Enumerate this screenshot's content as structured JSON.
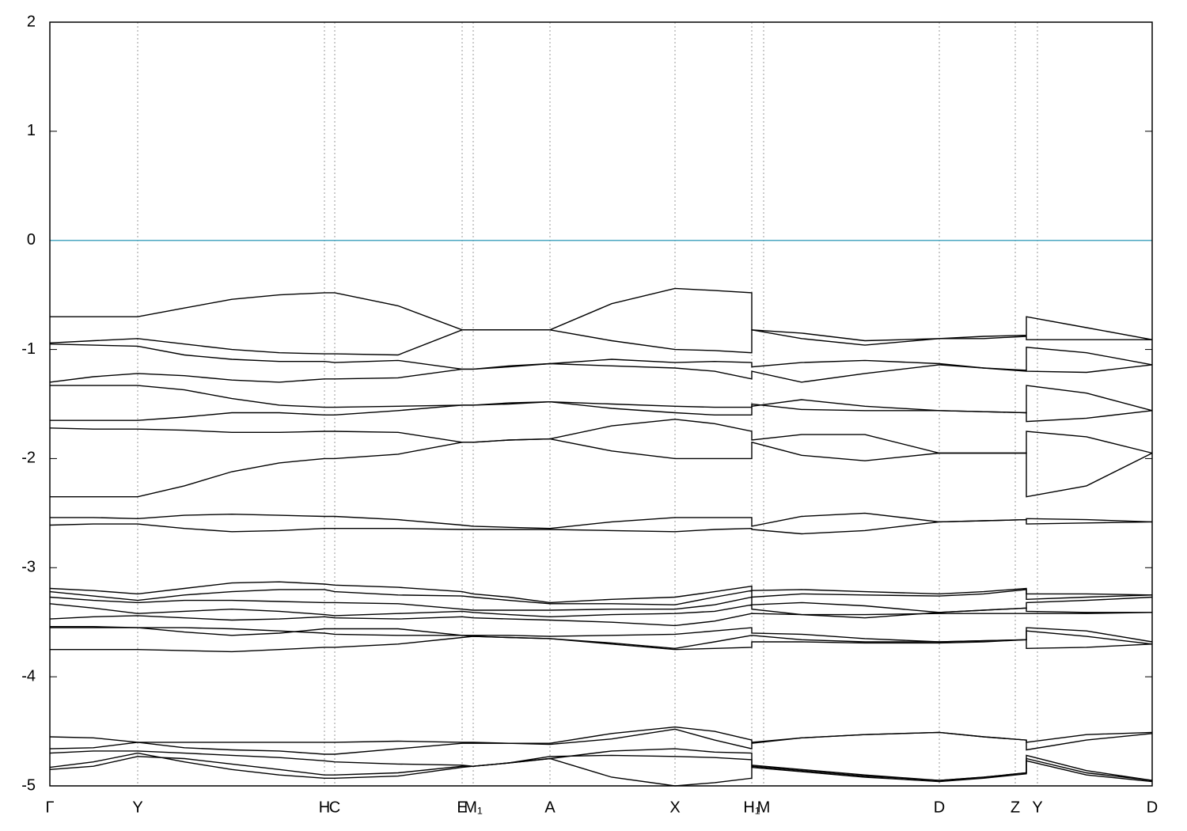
{
  "chart_data": {
    "type": "line",
    "color": "#000000",
    "fermi_level": 0,
    "fermi_color": "#4aa6c1",
    "grid": true,
    "xlim": [
      0,
      1.393
    ],
    "xticks": [
      {
        "value": 0,
        "label": "Γ"
      },
      {
        "value": 0.111,
        "label": "Y"
      },
      {
        "value": 0.347,
        "label": "H"
      },
      {
        "value": 0.36,
        "label": "C"
      },
      {
        "value": 0.521,
        "label": "E"
      },
      {
        "value": 0.535,
        "label": "M₁"
      },
      {
        "value": 0.632,
        "label": "A"
      },
      {
        "value": 0.79,
        "label": "X"
      },
      {
        "value": 0.887,
        "label": "H₁"
      },
      {
        "value": 0.902,
        "label": "M"
      },
      {
        "value": 1.124,
        "label": "D"
      },
      {
        "value": 1.22,
        "label": "Z"
      },
      {
        "value": 1.248,
        "label": "Y"
      },
      {
        "value": 1.393,
        "label": "D"
      }
    ],
    "ylim": [
      -5,
      2
    ],
    "yticks": [
      -5,
      -4,
      -3,
      -2,
      -1,
      0,
      1,
      2
    ],
    "x": [
      0,
      0.055,
      0.111,
      0.17,
      0.23,
      0.29,
      0.347,
      0.36,
      0.44,
      0.521,
      0.535,
      0.58,
      0.632,
      0.71,
      0.79,
      0.84,
      0.887,
      0.887,
      0.95,
      1.03,
      1.124,
      1.18,
      1.234,
      1.234,
      1.31,
      1.393
    ],
    "series": [
      {
        "values": [
          -0.7,
          -0.7,
          -0.7,
          -0.62,
          -0.54,
          -0.5,
          -0.48,
          -0.48,
          -0.6,
          -0.82,
          -0.82,
          -0.82,
          -0.82,
          -0.58,
          -0.44,
          -0.46,
          -0.48,
          -0.82,
          -0.85,
          -0.92,
          -0.9,
          -0.88,
          -0.87,
          -0.7,
          -0.8,
          -0.91
        ]
      },
      {
        "values": [
          -0.94,
          -0.92,
          -0.9,
          -0.95,
          -1.0,
          -1.03,
          -1.04,
          -1.04,
          -1.05,
          -0.82,
          -0.82,
          -0.82,
          -0.82,
          -0.92,
          -1.0,
          -1.01,
          -1.03,
          -0.82,
          -0.9,
          -0.96,
          -0.9,
          -0.9,
          -0.88,
          -0.91,
          -0.91,
          -0.91
        ]
      },
      {
        "values": [
          -0.95,
          -0.96,
          -0.97,
          -1.05,
          -1.09,
          -1.11,
          -1.11,
          -1.12,
          -1.1,
          -1.18,
          -1.18,
          -1.16,
          -1.13,
          -1.09,
          -1.12,
          -1.11,
          -1.12,
          -1.16,
          -1.12,
          -1.1,
          -1.13,
          -1.17,
          -1.19,
          -0.98,
          -1.03,
          -1.14
        ]
      },
      {
        "values": [
          -1.3,
          -1.25,
          -1.22,
          -1.24,
          -1.28,
          -1.3,
          -1.27,
          -1.27,
          -1.26,
          -1.18,
          -1.18,
          -1.15,
          -1.13,
          -1.15,
          -1.17,
          -1.2,
          -1.27,
          -1.2,
          -1.3,
          -1.22,
          -1.14,
          -1.17,
          -1.2,
          -1.2,
          -1.21,
          -1.14
        ]
      },
      {
        "values": [
          -1.33,
          -1.33,
          -1.33,
          -1.37,
          -1.45,
          -1.51,
          -1.53,
          -1.53,
          -1.52,
          -1.51,
          -1.51,
          -1.49,
          -1.48,
          -1.5,
          -1.52,
          -1.53,
          -1.53,
          -1.52,
          -1.46,
          -1.52,
          -1.56,
          -1.57,
          -1.58,
          -1.33,
          -1.4,
          -1.56
        ]
      },
      {
        "values": [
          -1.65,
          -1.65,
          -1.65,
          -1.62,
          -1.58,
          -1.58,
          -1.6,
          -1.6,
          -1.56,
          -1.51,
          -1.51,
          -1.5,
          -1.48,
          -1.54,
          -1.58,
          -1.6,
          -1.6,
          -1.5,
          -1.55,
          -1.56,
          -1.56,
          -1.57,
          -1.58,
          -1.66,
          -1.63,
          -1.56
        ]
      },
      {
        "values": [
          -1.72,
          -1.73,
          -1.73,
          -1.74,
          -1.76,
          -1.76,
          -1.75,
          -1.75,
          -1.76,
          -1.85,
          -1.85,
          -1.83,
          -1.82,
          -1.7,
          -1.64,
          -1.68,
          -1.75,
          -1.83,
          -1.78,
          -1.78,
          -1.95,
          -1.95,
          -1.95,
          -1.75,
          -1.8,
          -1.95
        ]
      },
      {
        "values": [
          -2.35,
          -2.35,
          -2.35,
          -2.25,
          -2.12,
          -2.04,
          -2.0,
          -2.0,
          -1.96,
          -1.85,
          -1.85,
          -1.83,
          -1.82,
          -1.93,
          -2.0,
          -2.0,
          -2.0,
          -1.85,
          -1.97,
          -2.02,
          -1.95,
          -1.95,
          -1.95,
          -2.35,
          -2.25,
          -1.95
        ]
      },
      {
        "values": [
          -2.54,
          -2.54,
          -2.55,
          -2.52,
          -2.51,
          -2.52,
          -2.53,
          -2.53,
          -2.56,
          -2.61,
          -2.62,
          -2.63,
          -2.64,
          -2.58,
          -2.54,
          -2.54,
          -2.54,
          -2.62,
          -2.53,
          -2.5,
          -2.58,
          -2.57,
          -2.56,
          -2.55,
          -2.56,
          -2.58
        ]
      },
      {
        "values": [
          -2.61,
          -2.6,
          -2.6,
          -2.64,
          -2.67,
          -2.66,
          -2.64,
          -2.64,
          -2.64,
          -2.65,
          -2.65,
          -2.65,
          -2.65,
          -2.66,
          -2.67,
          -2.65,
          -2.64,
          -2.65,
          -2.69,
          -2.66,
          -2.58,
          -2.57,
          -2.56,
          -2.6,
          -2.59,
          -2.58
        ]
      },
      {
        "values": [
          -3.19,
          -3.21,
          -3.24,
          -3.19,
          -3.14,
          -3.13,
          -3.15,
          -3.16,
          -3.18,
          -3.22,
          -3.24,
          -3.27,
          -3.32,
          -3.29,
          -3.27,
          -3.22,
          -3.17,
          -3.21,
          -3.2,
          -3.22,
          -3.24,
          -3.22,
          -3.19,
          -3.24,
          -3.24,
          -3.25
        ]
      },
      {
        "values": [
          -3.22,
          -3.26,
          -3.3,
          -3.25,
          -3.22,
          -3.2,
          -3.2,
          -3.22,
          -3.25,
          -3.26,
          -3.27,
          -3.3,
          -3.33,
          -3.33,
          -3.34,
          -3.27,
          -3.21,
          -3.27,
          -3.24,
          -3.25,
          -3.26,
          -3.24,
          -3.2,
          -3.29,
          -3.27,
          -3.25
        ]
      },
      {
        "values": [
          -3.27,
          -3.3,
          -3.32,
          -3.3,
          -3.3,
          -3.31,
          -3.32,
          -3.32,
          -3.33,
          -3.38,
          -3.39,
          -3.39,
          -3.39,
          -3.38,
          -3.38,
          -3.34,
          -3.27,
          -3.34,
          -3.32,
          -3.35,
          -3.41,
          -3.39,
          -3.37,
          -3.32,
          -3.3,
          -3.27
        ]
      },
      {
        "values": [
          -3.33,
          -3.37,
          -3.42,
          -3.4,
          -3.38,
          -3.4,
          -3.43,
          -3.44,
          -3.42,
          -3.4,
          -3.41,
          -3.43,
          -3.45,
          -3.43,
          -3.42,
          -3.4,
          -3.34,
          -3.38,
          -3.43,
          -3.46,
          -3.41,
          -3.39,
          -3.37,
          -3.4,
          -3.41,
          -3.41
        ]
      },
      {
        "values": [
          -3.47,
          -3.45,
          -3.44,
          -3.46,
          -3.48,
          -3.47,
          -3.45,
          -3.46,
          -3.47,
          -3.45,
          -3.46,
          -3.47,
          -3.48,
          -3.5,
          -3.53,
          -3.49,
          -3.42,
          -3.42,
          -3.43,
          -3.43,
          -3.42,
          -3.42,
          -3.42,
          -3.42,
          -3.42,
          -3.41
        ]
      },
      {
        "values": [
          -3.54,
          -3.54,
          -3.55,
          -3.59,
          -3.62,
          -3.6,
          -3.56,
          -3.56,
          -3.56,
          -3.62,
          -3.62,
          -3.62,
          -3.63,
          -3.62,
          -3.61,
          -3.58,
          -3.55,
          -3.6,
          -3.61,
          -3.65,
          -3.68,
          -3.67,
          -3.66,
          -3.55,
          -3.58,
          -3.68
        ]
      },
      {
        "values": [
          -3.55,
          -3.55,
          -3.55,
          -3.55,
          -3.56,
          -3.58,
          -3.6,
          -3.61,
          -3.62,
          -3.62,
          -3.63,
          -3.64,
          -3.65,
          -3.69,
          -3.74,
          -3.68,
          -3.62,
          -3.62,
          -3.66,
          -3.68,
          -3.68,
          -3.67,
          -3.66,
          -3.58,
          -3.63,
          -3.7
        ]
      },
      {
        "values": [
          -3.75,
          -3.75,
          -3.75,
          -3.76,
          -3.77,
          -3.75,
          -3.73,
          -3.73,
          -3.7,
          -3.64,
          -3.63,
          -3.64,
          -3.65,
          -3.7,
          -3.75,
          -3.74,
          -3.73,
          -3.68,
          -3.68,
          -3.69,
          -3.69,
          -3.68,
          -3.66,
          -3.74,
          -3.73,
          -3.7
        ]
      },
      {
        "values": [
          -4.55,
          -4.56,
          -4.6,
          -4.6,
          -4.6,
          -4.6,
          -4.6,
          -4.6,
          -4.59,
          -4.6,
          -4.6,
          -4.61,
          -4.61,
          -4.52,
          -4.46,
          -4.5,
          -4.58,
          -4.6,
          -4.56,
          -4.53,
          -4.51,
          -4.55,
          -4.58,
          -4.6,
          -4.53,
          -4.51
        ]
      },
      {
        "values": [
          -4.66,
          -4.65,
          -4.6,
          -4.65,
          -4.67,
          -4.68,
          -4.71,
          -4.71,
          -4.66,
          -4.61,
          -4.61,
          -4.61,
          -4.62,
          -4.57,
          -4.48,
          -4.58,
          -4.66,
          -4.61,
          -4.56,
          -4.53,
          -4.51,
          -4.55,
          -4.58,
          -4.67,
          -4.58,
          -4.52
        ]
      },
      {
        "values": [
          -4.7,
          -4.68,
          -4.68,
          -4.7,
          -4.72,
          -4.74,
          -4.77,
          -4.78,
          -4.8,
          -4.81,
          -4.82,
          -4.79,
          -4.75,
          -4.68,
          -4.66,
          -4.69,
          -4.7,
          -4.81,
          -4.85,
          -4.9,
          -4.95,
          -4.92,
          -4.88,
          -4.72,
          -4.86,
          -4.95
        ]
      },
      {
        "values": [
          -4.83,
          -4.78,
          -4.7,
          -4.78,
          -4.85,
          -4.9,
          -4.93,
          -4.93,
          -4.91,
          -4.83,
          -4.82,
          -4.79,
          -4.73,
          -4.72,
          -4.73,
          -4.74,
          -4.76,
          -4.83,
          -4.87,
          -4.92,
          -4.96,
          -4.93,
          -4.89,
          -4.77,
          -4.9,
          -4.96
        ]
      },
      {
        "values": [
          -4.85,
          -4.82,
          -4.73,
          -4.75,
          -4.8,
          -4.85,
          -4.9,
          -4.9,
          -4.88,
          -4.82,
          -4.82,
          -4.79,
          -4.75,
          -4.92,
          -5.0,
          -4.97,
          -4.93,
          -4.82,
          -4.86,
          -4.91,
          -4.95,
          -4.92,
          -4.88,
          -4.75,
          -4.88,
          -4.95
        ]
      }
    ]
  }
}
